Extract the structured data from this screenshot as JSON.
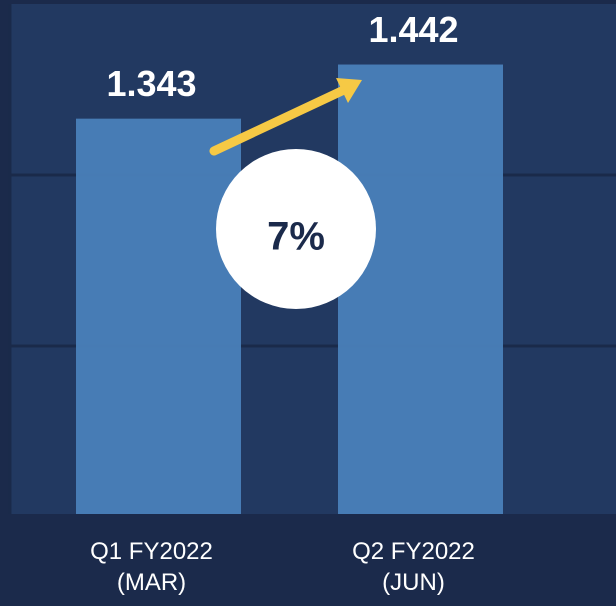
{
  "chart_data": {
    "type": "bar",
    "categories": [
      "Q1 FY2022\n(MAR)",
      "Q2 FY2022\n(JUN)"
    ],
    "values": [
      1.343,
      1.442
    ],
    "color": "#4a7fb9",
    "ylim": [
      0.62,
      1.56
    ],
    "annotation": "7%"
  }
}
